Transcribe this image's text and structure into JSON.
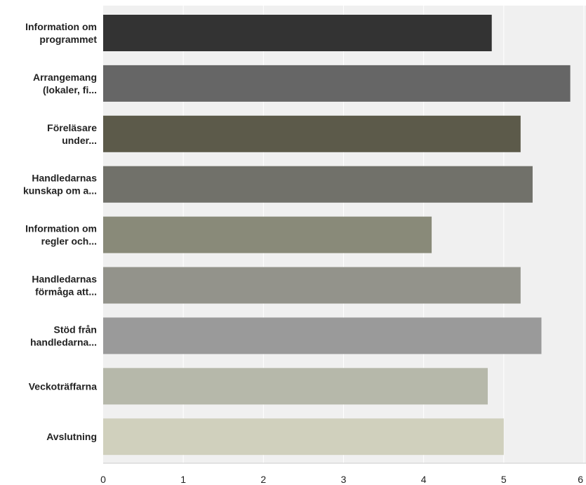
{
  "chart_data": {
    "type": "bar",
    "orientation": "horizontal",
    "categories": [
      [
        "Information om",
        "programmet"
      ],
      [
        "Arrangemang",
        "(lokaler, fi..."
      ],
      [
        "Föreläsare",
        "under..."
      ],
      [
        "Handledarnas",
        "kunskap om a..."
      ],
      [
        "Information om",
        "regler och..."
      ],
      [
        "Handledarnas",
        "förmåga att..."
      ],
      [
        "Stöd från",
        "handledarna..."
      ],
      [
        "Veckoträffarna"
      ],
      [
        "Avslutning"
      ]
    ],
    "values": [
      4.85,
      5.83,
      5.21,
      5.36,
      4.1,
      5.21,
      5.47,
      4.8,
      5.0
    ],
    "xlim": [
      0,
      6
    ],
    "xticks": [
      "0",
      "1",
      "2",
      "3",
      "4",
      "5",
      "6"
    ],
    "grid": true,
    "colors": {
      "bars": [
        "#333333",
        "#666666",
        "#5c5a4a",
        "#71716a",
        "#898a79",
        "#93938b",
        "#9a9a9a",
        "#b6b8aa",
        "#d0d0bd"
      ],
      "plot_background": "#f0f0f0",
      "gridline": "#ffffff",
      "axis": "#cccccc"
    }
  }
}
